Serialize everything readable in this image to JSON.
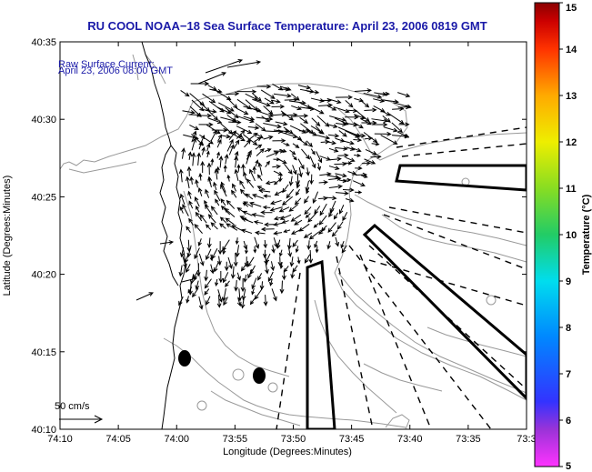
{
  "title": "RU COOL  NOAA−18  Sea Surface Temperature:  April 23, 2006 0819 GMT",
  "annotation": {
    "line1": "Raw Surface Current:",
    "line2": "April 23, 2006 08:00 GMT"
  },
  "scale_label": "50 cm/s",
  "axes": {
    "xlabel": "Longitude (Degrees:Minutes)",
    "ylabel": "Latitude (Degrees:Minutes)",
    "xticks": [
      "74:10",
      "74:05",
      "74:00",
      "73:55",
      "73:50",
      "73:45",
      "73:40",
      "73:35",
      "73:3"
    ],
    "yticks": [
      "40:35",
      "40:30",
      "40:25",
      "40:20",
      "40:15",
      "40:10"
    ]
  },
  "colorbar": {
    "label": "Temperature (°C)",
    "min": 5,
    "max": 15,
    "ticks": [
      "15",
      "14",
      "13",
      "12",
      "11",
      "10",
      "9",
      "8",
      "7",
      "6",
      "5"
    ],
    "colors": [
      "#ff33ff",
      "#9a33d8",
      "#3333ff",
      "#0088ff",
      "#00ddee",
      "#22cc66",
      "#88dd22",
      "#eeee00",
      "#ffaa00",
      "#ff3300",
      "#cc0000",
      "#8a0000"
    ]
  },
  "colors": {
    "title": "#1a1aa8",
    "contour": "#999999",
    "vector": "#000000",
    "land": "#ffffff"
  }
}
